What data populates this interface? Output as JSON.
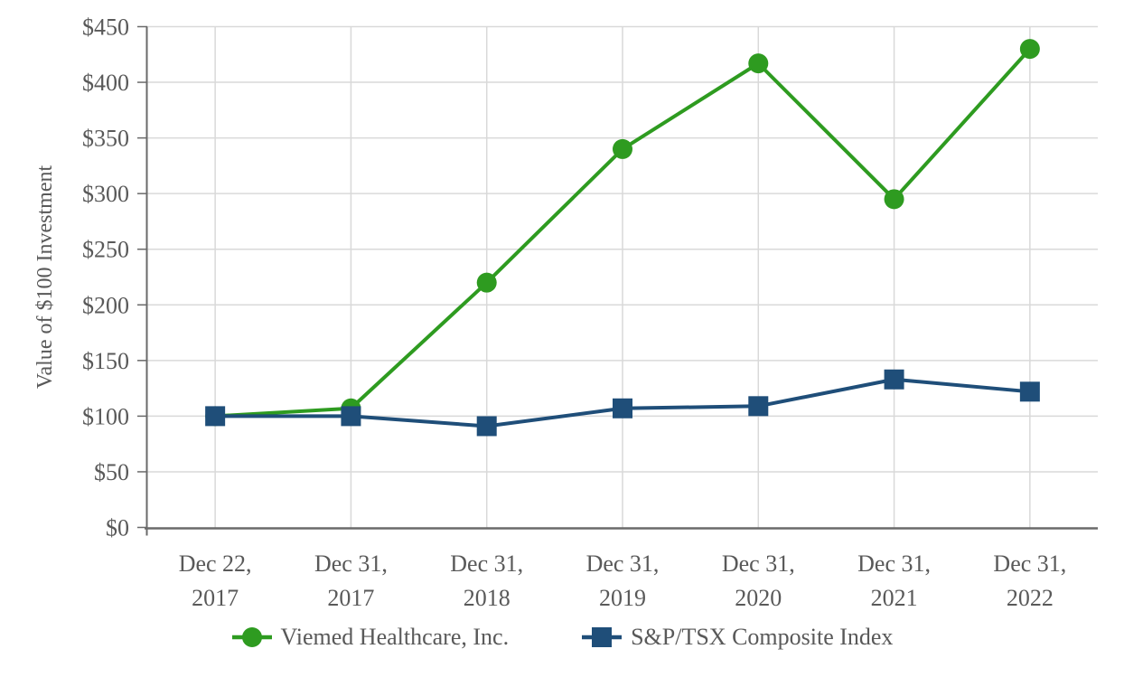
{
  "chart_data": {
    "type": "line",
    "title": "",
    "ylabel": "Value of $100 Investment",
    "xlabel": "",
    "categories": [
      "Dec 22, 2017",
      "Dec 31, 2017",
      "Dec 31, 2018",
      "Dec 31, 2019",
      "Dec 31, 2020",
      "Dec 31, 2021",
      "Dec 31, 2022"
    ],
    "x_tick_lines": [
      [
        "Dec 22,",
        "2017"
      ],
      [
        "Dec 31,",
        "2017"
      ],
      [
        "Dec 31,",
        "2018"
      ],
      [
        "Dec 31,",
        "2019"
      ],
      [
        "Dec 31,",
        "2020"
      ],
      [
        "Dec 31,",
        "2021"
      ],
      [
        "Dec 31,",
        "2022"
      ]
    ],
    "y_axis": {
      "min": 0,
      "max": 450,
      "step": 50,
      "tick_labels": [
        "$0",
        "$50",
        "$100",
        "$150",
        "$200",
        "$250",
        "$300",
        "$350",
        "$400",
        "$450"
      ]
    },
    "grid": true,
    "legend_position": "bottom",
    "series": [
      {
        "name": "Viemed Healthcare, Inc.",
        "marker": "circle",
        "color": "#2E9B20",
        "values": [
          100,
          107,
          220,
          340,
          417,
          295,
          430
        ]
      },
      {
        "name": "S&P/TSX Composite Index",
        "marker": "square",
        "color": "#1F4E79",
        "values": [
          100,
          100,
          91,
          107,
          109,
          133,
          122
        ]
      }
    ]
  },
  "style_colors": {
    "gridline": "#D9D9D9",
    "axis_line": "#6A6A6A",
    "text": "#595959"
  }
}
